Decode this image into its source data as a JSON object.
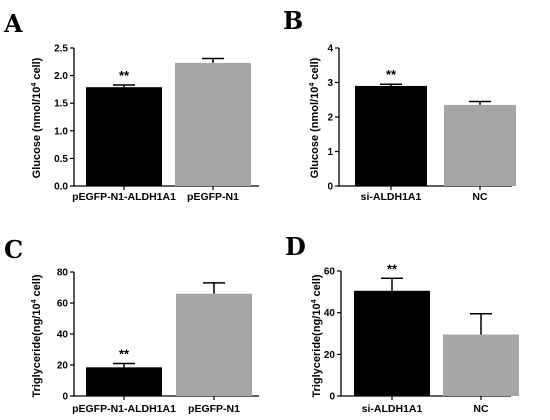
{
  "colors": {
    "bar_dark": "#000000",
    "bar_light": "#a6a6a6",
    "axis": "#000000"
  },
  "chart_data": [
    {
      "panel": "A",
      "type": "bar",
      "ylabel_pre": "Glucose (nmol/10",
      "ylabel_sup": "4",
      "ylabel_post": " cell)",
      "ylim": [
        0,
        2.5
      ],
      "yticks": [
        0,
        0.5,
        1.0,
        1.5,
        2.0,
        2.5
      ],
      "ytick_labels": [
        "0.0",
        "0.5",
        "1.0",
        "1.5",
        "2.0",
        "2.5"
      ],
      "categories": [
        "pEGFP-N1-ALDH1A1",
        "pEGFP-N1"
      ],
      "values": [
        1.79,
        2.23
      ],
      "errors": [
        0.04,
        0.08
      ],
      "significance": [
        "**",
        ""
      ]
    },
    {
      "panel": "B",
      "type": "bar",
      "ylabel_pre": "Glucose (nmol/10",
      "ylabel_sup": "4",
      "ylabel_post": " cell)",
      "ylim": [
        0,
        4
      ],
      "yticks": [
        0,
        1,
        2,
        3,
        4
      ],
      "ytick_labels": [
        "0",
        "1",
        "2",
        "3",
        "4"
      ],
      "categories": [
        "si-ALDH1A1",
        "NC"
      ],
      "values": [
        2.9,
        2.35
      ],
      "errors": [
        0.05,
        0.1
      ],
      "significance": [
        "**",
        ""
      ]
    },
    {
      "panel": "C",
      "type": "bar",
      "ylabel_pre": "Triglyceride(ng/10",
      "ylabel_sup": "4",
      "ylabel_post": " cell)",
      "ylim": [
        0,
        80
      ],
      "yticks": [
        0,
        20,
        40,
        60,
        80
      ],
      "ytick_labels": [
        "0",
        "20",
        "40",
        "60",
        "80"
      ],
      "categories": [
        "pEGFP-N1-ALDH1A1",
        "pEGFP-N1"
      ],
      "values": [
        18.5,
        66
      ],
      "errors": [
        2.5,
        7
      ],
      "significance": [
        "**",
        ""
      ]
    },
    {
      "panel": "D",
      "type": "bar",
      "ylabel_pre": "Triglyceride(ng/10",
      "ylabel_sup": "4",
      "ylabel_post": " cell)",
      "ylim": [
        0,
        60
      ],
      "yticks": [
        0,
        20,
        40,
        60
      ],
      "ytick_labels": [
        "0",
        "20",
        "40",
        "60"
      ],
      "categories": [
        "si-ALDH1A1",
        "NC"
      ],
      "values": [
        50.5,
        29.5
      ],
      "errors": [
        6,
        10
      ],
      "significance": [
        "**",
        ""
      ]
    }
  ]
}
